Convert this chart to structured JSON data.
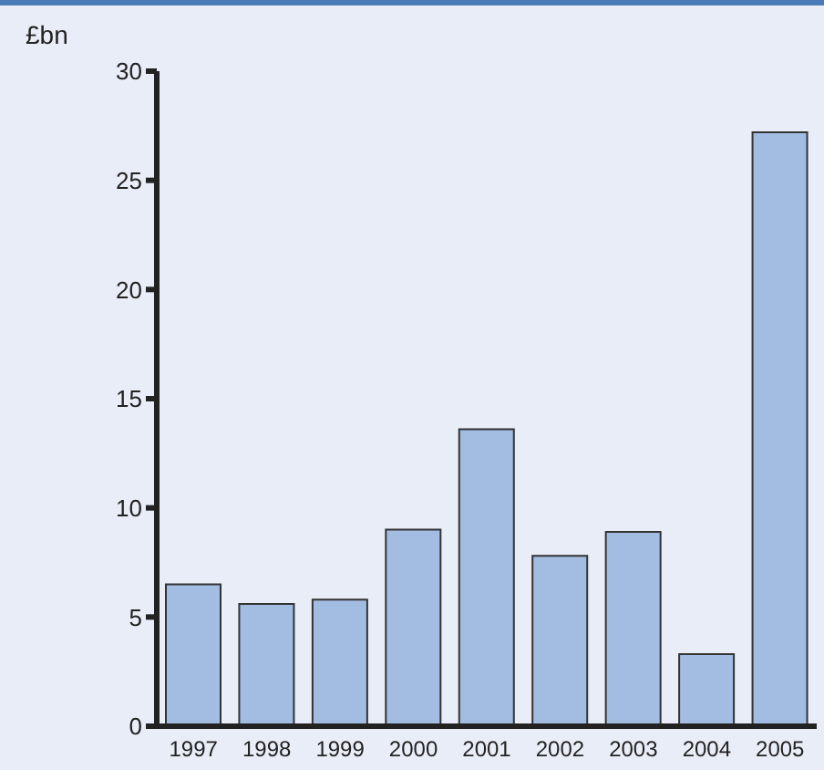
{
  "chart_data": {
    "type": "bar",
    "ylabel": "£bn",
    "categories": [
      "1997",
      "1998",
      "1999",
      "2000",
      "2001",
      "2002",
      "2003",
      "2004",
      "2005"
    ],
    "values": [
      6.5,
      5.6,
      5.8,
      9.0,
      13.6,
      7.8,
      8.9,
      3.3,
      27.2
    ],
    "color": "#a3bde2",
    "ylim": [
      0,
      30
    ],
    "yticks": [
      0,
      5,
      10,
      15,
      20,
      25,
      30
    ],
    "grid": false
  }
}
